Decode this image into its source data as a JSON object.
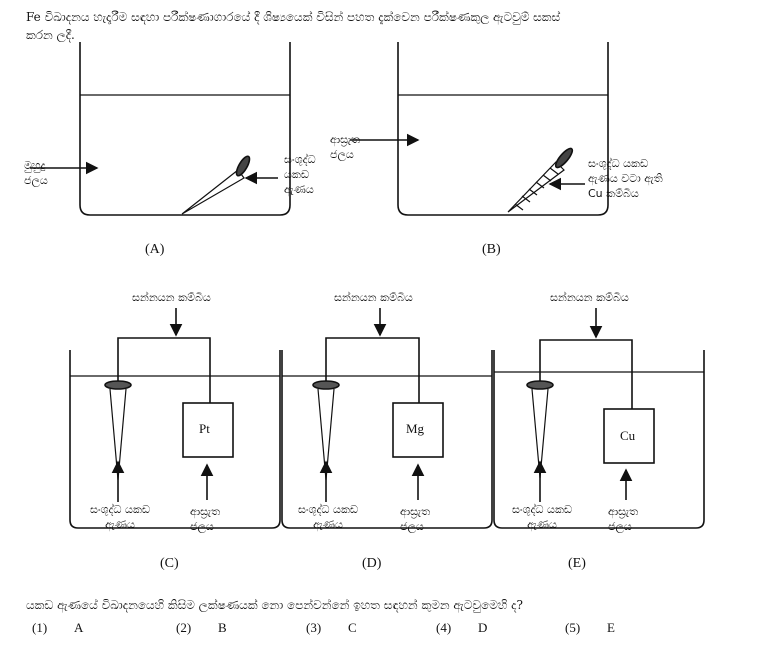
{
  "question": {
    "line1": "Fe විඛාදනය හැදෑරීම සඳහා පරීක්ෂණාගාරයේ දී ශිෂ්‍යයෙක් විසින් පහත දැක්වෙන පරීක්ෂණකුල ඇටවුම් සකස්",
    "line2": "කරන ලදී.",
    "prompt": "යකඩ ඇණයේ විඛාදනයෙහි කිසිම ලක්ෂණයක් නො පෙන්වන්නේ ඉහත සඳහන් කුමන ඇටවුමෙහි ද?"
  },
  "setups": {
    "A": {
      "caption": "(A)",
      "water_label_1": "මුහුදු",
      "water_label_2": "ජලය",
      "nail_label_1": "සංශුද්ධ",
      "nail_label_2": "යකඩ",
      "nail_label_3": "ඇණය"
    },
    "B": {
      "caption": "(B)",
      "water_label_1": "ආස්‍රැත",
      "water_label_2": "ජලය",
      "nail_label_1": "සංශුද්ධ යකඩ",
      "nail_label_2": "ඇණය වටා ඇති",
      "nail_label_3": "Cu කම්බිය"
    },
    "C": {
      "caption": "(C)",
      "wire_label": "සන්නයන කම්බිය",
      "metal": "Pt",
      "nail_label_1": "සංශුද්ධ යකඩ",
      "nail_label_2": "ඇණය",
      "water_label_1": "ආස්‍රැත",
      "water_label_2": "ජලය"
    },
    "D": {
      "caption": "(D)",
      "wire_label": "සන්නයන කම්බිය",
      "metal": "Mg",
      "nail_label_1": "සංශුද්ධ යකඩ",
      "nail_label_2": "ඇණය",
      "water_label_1": "ආස්‍රැත",
      "water_label_2": "ජලය"
    },
    "E": {
      "caption": "(E)",
      "wire_label": "සන්නයන කම්බිය",
      "metal": "Cu",
      "nail_label_1": "සංශුද්ධ යකඩ",
      "nail_label_2": "ඇණය",
      "water_label_1": "ආස්‍රැත",
      "water_label_2": "ජලය"
    }
  },
  "options": [
    {
      "num": "(1)",
      "label": "A"
    },
    {
      "num": "(2)",
      "label": "B"
    },
    {
      "num": "(3)",
      "label": "C"
    },
    {
      "num": "(4)",
      "label": "D"
    },
    {
      "num": "(5)",
      "label": "E"
    }
  ]
}
